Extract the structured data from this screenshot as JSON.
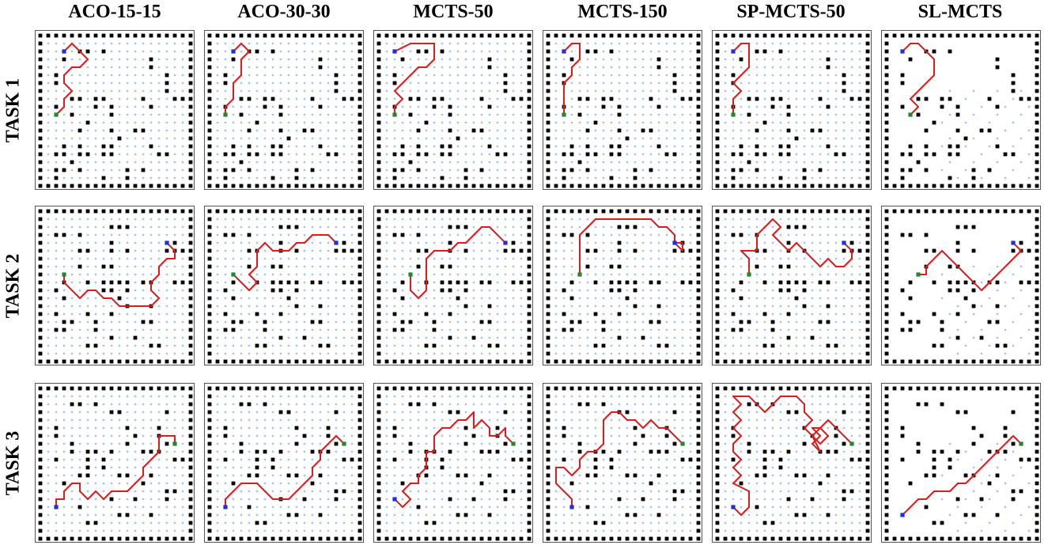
{
  "columns": [
    "ACO-15-15",
    "ACO-30-30",
    "MCTS-50",
    "MCTS-150",
    "SP-MCTS-50",
    "SL-MCTS"
  ],
  "rows": [
    "TASK 1",
    "TASK 2",
    "TASK 3"
  ],
  "colors": {
    "obstacle": "#000000",
    "free_dot": "#a9c4e6",
    "path": "#e01b1b",
    "start_blue": "#1f2fe0",
    "goal_green": "#1d8a2e"
  },
  "grid_size": 20,
  "obstacles": {
    "task1": [
      [
        5,
        2
      ],
      [
        6,
        2
      ],
      [
        8,
        2
      ],
      [
        3,
        3
      ],
      [
        2,
        5
      ],
      [
        2,
        6
      ],
      [
        14,
        3
      ],
      [
        14,
        4
      ],
      [
        16,
        5
      ],
      [
        16,
        6
      ],
      [
        16,
        7
      ],
      [
        4,
        8
      ],
      [
        5,
        8
      ],
      [
        7,
        8
      ],
      [
        8,
        8
      ],
      [
        13,
        8
      ],
      [
        17,
        8
      ],
      [
        18,
        8
      ],
      [
        2,
        9
      ],
      [
        7,
        9
      ],
      [
        9,
        9
      ],
      [
        14,
        9
      ],
      [
        4,
        10
      ],
      [
        9,
        10
      ],
      [
        6,
        11
      ],
      [
        10,
        13
      ],
      [
        5,
        12
      ],
      [
        9,
        12
      ],
      [
        12,
        12
      ],
      [
        13,
        12
      ],
      [
        14,
        14
      ],
      [
        3,
        14
      ],
      [
        5,
        14
      ],
      [
        8,
        14
      ],
      [
        9,
        14
      ],
      [
        2,
        15
      ],
      [
        3,
        15
      ],
      [
        5,
        15
      ],
      [
        6,
        15
      ],
      [
        8,
        15
      ],
      [
        9,
        15
      ],
      [
        15,
        15
      ],
      [
        16,
        15
      ],
      [
        4,
        16
      ],
      [
        11,
        17
      ],
      [
        13,
        17
      ],
      [
        2,
        17
      ],
      [
        3,
        17
      ],
      [
        5,
        17
      ],
      [
        2,
        18
      ],
      [
        8,
        18
      ],
      [
        11,
        18
      ]
    ],
    "task2": [
      [
        9,
        2
      ],
      [
        10,
        2
      ],
      [
        11,
        2
      ],
      [
        2,
        3
      ],
      [
        3,
        3
      ],
      [
        5,
        3
      ],
      [
        9,
        4
      ],
      [
        16,
        4
      ],
      [
        17,
        4
      ],
      [
        5,
        5
      ],
      [
        6,
        5
      ],
      [
        9,
        5
      ],
      [
        11,
        5
      ],
      [
        16,
        5
      ],
      [
        17,
        5
      ],
      [
        18,
        5
      ],
      [
        8,
        7
      ],
      [
        9,
        7
      ],
      [
        5,
        7
      ],
      [
        3,
        9
      ],
      [
        6,
        9
      ],
      [
        8,
        9
      ],
      [
        9,
        9
      ],
      [
        10,
        9
      ],
      [
        11,
        9
      ],
      [
        13,
        9
      ],
      [
        14,
        9
      ],
      [
        17,
        9
      ],
      [
        18,
        9
      ],
      [
        8,
        10
      ],
      [
        9,
        10
      ],
      [
        11,
        10
      ],
      [
        2,
        10
      ],
      [
        3,
        11
      ],
      [
        10,
        11
      ],
      [
        11,
        12
      ],
      [
        14,
        12
      ],
      [
        2,
        13
      ],
      [
        6,
        13
      ],
      [
        9,
        13
      ],
      [
        3,
        14
      ],
      [
        4,
        14
      ],
      [
        7,
        14
      ],
      [
        13,
        14
      ],
      [
        14,
        14
      ],
      [
        2,
        15
      ],
      [
        3,
        15
      ],
      [
        7,
        15
      ],
      [
        9,
        16
      ],
      [
        12,
        16
      ],
      [
        14,
        17
      ],
      [
        15,
        17
      ],
      [
        6,
        17
      ],
      [
        7,
        17
      ]
    ],
    "task3": [
      [
        4,
        2
      ],
      [
        5,
        2
      ],
      [
        7,
        2
      ],
      [
        9,
        3
      ],
      [
        10,
        3
      ],
      [
        16,
        3
      ],
      [
        2,
        5
      ],
      [
        11,
        5
      ],
      [
        15,
        5
      ],
      [
        2,
        6
      ],
      [
        12,
        6
      ],
      [
        15,
        6
      ],
      [
        4,
        7
      ],
      [
        11,
        7
      ],
      [
        16,
        7
      ],
      [
        4,
        8
      ],
      [
        6,
        8
      ],
      [
        7,
        8
      ],
      [
        9,
        8
      ],
      [
        13,
        8
      ],
      [
        14,
        8
      ],
      [
        15,
        8
      ],
      [
        2,
        9
      ],
      [
        6,
        9
      ],
      [
        8,
        9
      ],
      [
        17,
        9
      ],
      [
        18,
        9
      ],
      [
        6,
        10
      ],
      [
        8,
        10
      ],
      [
        5,
        11
      ],
      [
        6,
        11
      ],
      [
        10,
        11
      ],
      [
        11,
        11
      ],
      [
        14,
        11
      ],
      [
        3,
        12
      ],
      [
        13,
        12
      ],
      [
        16,
        13
      ],
      [
        17,
        13
      ],
      [
        9,
        14
      ],
      [
        12,
        14
      ],
      [
        16,
        14
      ],
      [
        5,
        15
      ],
      [
        10,
        16
      ],
      [
        11,
        16
      ],
      [
        14,
        16
      ],
      [
        6,
        17
      ],
      [
        7,
        17
      ]
    ]
  },
  "paths": {
    "t1_aco15": [
      [
        3,
        2
      ],
      [
        4,
        1
      ],
      [
        5,
        2
      ],
      [
        6,
        3
      ],
      [
        5,
        4
      ],
      [
        4,
        4
      ],
      [
        3,
        5
      ],
      [
        3,
        6
      ],
      [
        4,
        7
      ],
      [
        3,
        8
      ],
      [
        3,
        9
      ],
      [
        2,
        10
      ]
    ],
    "t1_aco30": [
      [
        3,
        2
      ],
      [
        4,
        1
      ],
      [
        5,
        2
      ],
      [
        4,
        3
      ],
      [
        4,
        5
      ],
      [
        3,
        6
      ],
      [
        3,
        8
      ],
      [
        2,
        9
      ],
      [
        2,
        10
      ]
    ],
    "t1_mcts50": [
      [
        2,
        2
      ],
      [
        4,
        1
      ],
      [
        7,
        1
      ],
      [
        7,
        3
      ],
      [
        6,
        4
      ],
      [
        5,
        4
      ],
      [
        4,
        5
      ],
      [
        3,
        6
      ],
      [
        2,
        7
      ],
      [
        3,
        8
      ],
      [
        2,
        9
      ],
      [
        2,
        10
      ]
    ],
    "t1_mcts150": [
      [
        2,
        2
      ],
      [
        3,
        1
      ],
      [
        4,
        1
      ],
      [
        4,
        3
      ],
      [
        3,
        4
      ],
      [
        3,
        5
      ],
      [
        2,
        6
      ],
      [
        2,
        10
      ]
    ],
    "t1_spmcts": [
      [
        2,
        2
      ],
      [
        3,
        1
      ],
      [
        4,
        1
      ],
      [
        4,
        4
      ],
      [
        3,
        5
      ],
      [
        2,
        6
      ],
      [
        3,
        7
      ],
      [
        2,
        8
      ],
      [
        2,
        10
      ]
    ],
    "t1_slmcts": [
      [
        2,
        2
      ],
      [
        3,
        1
      ],
      [
        4,
        1
      ],
      [
        5,
        2
      ],
      [
        6,
        3
      ],
      [
        6,
        5
      ],
      [
        5,
        6
      ],
      [
        4,
        7
      ],
      [
        3,
        8
      ],
      [
        4,
        9
      ],
      [
        3,
        10
      ]
    ],
    "t2_aco15": [
      [
        16,
        4
      ],
      [
        17,
        5
      ],
      [
        17,
        6
      ],
      [
        16,
        6
      ],
      [
        15,
        7
      ],
      [
        15,
        8
      ],
      [
        14,
        9
      ],
      [
        14,
        10
      ],
      [
        15,
        11
      ],
      [
        14,
        12
      ],
      [
        10,
        12
      ],
      [
        9,
        11
      ],
      [
        8,
        11
      ],
      [
        7,
        10
      ],
      [
        6,
        10
      ],
      [
        5,
        11
      ],
      [
        4,
        10
      ],
      [
        3,
        9
      ],
      [
        3,
        8
      ]
    ],
    "t2_aco30": [
      [
        16,
        4
      ],
      [
        15,
        3
      ],
      [
        13,
        3
      ],
      [
        12,
        4
      ],
      [
        11,
        4
      ],
      [
        10,
        5
      ],
      [
        8,
        5
      ],
      [
        7,
        4
      ],
      [
        6,
        5
      ],
      [
        6,
        7
      ],
      [
        5,
        8
      ],
      [
        6,
        9
      ],
      [
        5,
        10
      ],
      [
        4,
        9
      ],
      [
        3,
        8
      ]
    ],
    "t2_mcts50": [
      [
        16,
        4
      ],
      [
        15,
        3
      ],
      [
        14,
        2
      ],
      [
        13,
        2
      ],
      [
        12,
        3
      ],
      [
        11,
        4
      ],
      [
        10,
        4
      ],
      [
        9,
        5
      ],
      [
        7,
        5
      ],
      [
        6,
        6
      ],
      [
        6,
        10
      ],
      [
        5,
        11
      ],
      [
        4,
        10
      ],
      [
        4,
        8
      ]
    ],
    "t2_mcts150": [
      [
        16,
        4
      ],
      [
        17,
        4
      ],
      [
        17,
        5
      ],
      [
        16,
        4
      ],
      [
        16,
        3
      ],
      [
        15,
        2
      ],
      [
        14,
        2
      ],
      [
        13,
        1
      ],
      [
        6,
        1
      ],
      [
        5,
        2
      ],
      [
        4,
        3
      ],
      [
        4,
        8
      ]
    ],
    "t2_spmcts": [
      [
        16,
        4
      ],
      [
        17,
        5
      ],
      [
        17,
        6
      ],
      [
        16,
        7
      ],
      [
        15,
        7
      ],
      [
        14,
        6
      ],
      [
        13,
        7
      ],
      [
        12,
        6
      ],
      [
        11,
        5
      ],
      [
        10,
        4
      ],
      [
        9,
        5
      ],
      [
        8,
        4
      ],
      [
        7,
        3
      ],
      [
        8,
        2
      ],
      [
        7,
        1
      ],
      [
        6,
        2
      ],
      [
        5,
        3
      ],
      [
        5,
        5
      ],
      [
        3,
        5
      ],
      [
        4,
        6
      ],
      [
        4,
        8
      ]
    ],
    "t2_slmcts": [
      [
        16,
        4
      ],
      [
        17,
        5
      ],
      [
        16,
        6
      ],
      [
        15,
        7
      ],
      [
        14,
        8
      ],
      [
        13,
        9
      ],
      [
        12,
        10
      ],
      [
        11,
        9
      ],
      [
        10,
        8
      ],
      [
        9,
        7
      ],
      [
        8,
        6
      ],
      [
        7,
        5
      ],
      [
        6,
        6
      ],
      [
        5,
        7
      ],
      [
        5,
        8
      ],
      [
        4,
        8
      ]
    ],
    "t3_aco15": [
      [
        17,
        7
      ],
      [
        17,
        6
      ],
      [
        15,
        6
      ],
      [
        15,
        8
      ],
      [
        14,
        9
      ],
      [
        13,
        10
      ],
      [
        13,
        11
      ],
      [
        12,
        12
      ],
      [
        11,
        13
      ],
      [
        9,
        13
      ],
      [
        8,
        14
      ],
      [
        7,
        13
      ],
      [
        6,
        14
      ],
      [
        5,
        13
      ],
      [
        5,
        12
      ],
      [
        4,
        12
      ],
      [
        3,
        13
      ],
      [
        3,
        14
      ],
      [
        2,
        14
      ],
      [
        2,
        15
      ]
    ],
    "t3_aco30": [
      [
        17,
        7
      ],
      [
        16,
        6
      ],
      [
        15,
        7
      ],
      [
        14,
        8
      ],
      [
        14,
        9
      ],
      [
        13,
        10
      ],
      [
        13,
        11
      ],
      [
        12,
        12
      ],
      [
        11,
        13
      ],
      [
        10,
        14
      ],
      [
        8,
        14
      ],
      [
        7,
        13
      ],
      [
        6,
        12
      ],
      [
        4,
        12
      ],
      [
        3,
        13
      ],
      [
        2,
        14
      ],
      [
        2,
        15
      ]
    ],
    "t3_mcts50": [
      [
        17,
        7
      ],
      [
        16,
        6
      ],
      [
        16,
        5
      ],
      [
        15,
        6
      ],
      [
        14,
        6
      ],
      [
        14,
        5
      ],
      [
        13,
        4
      ],
      [
        12,
        5
      ],
      [
        12,
        3
      ],
      [
        11,
        4
      ],
      [
        10,
        4
      ],
      [
        9,
        5
      ],
      [
        8,
        5
      ],
      [
        7,
        6
      ],
      [
        7,
        8
      ],
      [
        6,
        8
      ],
      [
        6,
        10
      ],
      [
        5,
        11
      ],
      [
        5,
        12
      ],
      [
        4,
        12
      ],
      [
        3,
        13
      ],
      [
        4,
        14
      ],
      [
        3,
        15
      ],
      [
        2,
        14
      ]
    ],
    "t3_mcts150": [
      [
        17,
        7
      ],
      [
        16,
        6
      ],
      [
        15,
        5
      ],
      [
        14,
        5
      ],
      [
        13,
        4
      ],
      [
        12,
        5
      ],
      [
        11,
        4
      ],
      [
        10,
        4
      ],
      [
        9,
        3
      ],
      [
        8,
        3
      ],
      [
        7,
        4
      ],
      [
        7,
        7
      ],
      [
        6,
        8
      ],
      [
        5,
        8
      ],
      [
        4,
        9
      ],
      [
        4,
        10
      ],
      [
        3,
        11
      ],
      [
        2,
        10
      ],
      [
        1,
        10
      ],
      [
        1,
        12
      ],
      [
        2,
        13
      ],
      [
        3,
        14
      ],
      [
        3,
        15
      ]
    ],
    "t3_spmcts": [
      [
        17,
        7
      ],
      [
        16,
        6
      ],
      [
        15,
        5
      ],
      [
        14,
        4
      ],
      [
        13,
        5
      ],
      [
        12,
        6
      ],
      [
        13,
        7
      ],
      [
        14,
        6
      ],
      [
        13,
        5
      ],
      [
        12,
        5
      ],
      [
        13,
        6
      ],
      [
        12,
        7
      ],
      [
        13,
        8
      ],
      [
        12,
        6
      ],
      [
        11,
        5
      ],
      [
        12,
        4
      ],
      [
        11,
        3
      ],
      [
        11,
        2
      ],
      [
        10,
        1
      ],
      [
        8,
        1
      ],
      [
        7,
        2
      ],
      [
        6,
        3
      ],
      [
        5,
        2
      ],
      [
        4,
        1
      ],
      [
        3,
        1
      ],
      [
        2,
        1
      ],
      [
        3,
        2
      ],
      [
        2,
        3
      ],
      [
        3,
        4
      ],
      [
        2,
        5
      ],
      [
        3,
        6
      ],
      [
        2,
        7
      ],
      [
        2,
        8
      ],
      [
        3,
        9
      ],
      [
        2,
        10
      ],
      [
        3,
        11
      ],
      [
        2,
        12
      ],
      [
        4,
        13
      ],
      [
        4,
        15
      ],
      [
        3,
        16
      ],
      [
        2,
        15
      ]
    ],
    "t3_slmcts": [
      [
        17,
        7
      ],
      [
        16,
        6
      ],
      [
        15,
        7
      ],
      [
        14,
        8
      ],
      [
        13,
        9
      ],
      [
        12,
        10
      ],
      [
        11,
        11
      ],
      [
        10,
        12
      ],
      [
        9,
        12
      ],
      [
        8,
        13
      ],
      [
        6,
        13
      ],
      [
        5,
        14
      ],
      [
        4,
        14
      ],
      [
        3,
        15
      ],
      [
        2,
        16
      ]
    ]
  },
  "starts": {
    "t1": [
      1.5,
      2
    ],
    "t2": [
      16,
      4
    ],
    "t3": [
      16.5,
      7
    ]
  },
  "goals": {
    "t1": [
      2,
      10
    ],
    "t2": [
      3,
      8
    ],
    "t3": [
      2,
      15
    ]
  }
}
